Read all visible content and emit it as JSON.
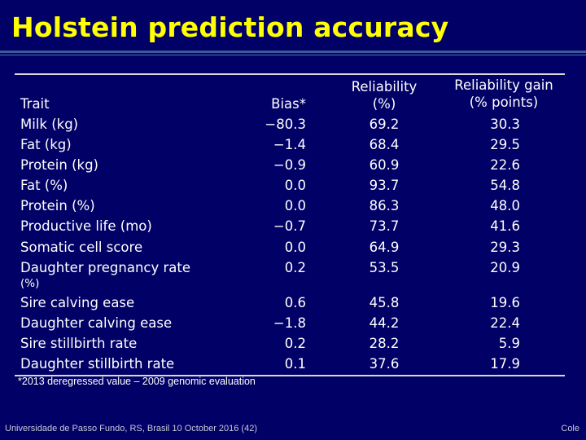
{
  "title": "Holstein prediction accuracy",
  "colors": {
    "background": "#000066",
    "title": "#ffff00",
    "text": "#ffffff",
    "rule": "#d8d8d8"
  },
  "table": {
    "headers": {
      "trait": "Trait",
      "bias": "Bias*",
      "reliability_l1": "Reliability",
      "reliability_l2": "(%)",
      "gain_l1": "Reliability gain",
      "gain_l2": "(% points)"
    },
    "rows": [
      {
        "trait": "Milk (kg)",
        "bias": "−80.3",
        "reliability": "69.2",
        "gain": "30.3"
      },
      {
        "trait": "Fat (kg)",
        "bias": "−1.4",
        "reliability": "68.4",
        "gain": "29.5"
      },
      {
        "trait": "Protein (kg)",
        "bias": "−0.9",
        "reliability": "60.9",
        "gain": "22.6"
      },
      {
        "trait": "Fat (%)",
        "bias": "0.0",
        "reliability": "93.7",
        "gain": "54.8"
      },
      {
        "trait": "Protein (%)",
        "bias": "0.0",
        "reliability": "86.3",
        "gain": "48.0"
      },
      {
        "trait": "Productive life (mo)",
        "bias": "−0.7",
        "reliability": "73.7",
        "gain": "41.6"
      },
      {
        "trait": "Somatic cell score",
        "bias": "0.0",
        "reliability": "64.9",
        "gain": "29.3"
      },
      {
        "trait": "Daughter pregnancy rate",
        "trait_cont": "(%)",
        "bias": "0.2",
        "reliability": "53.5",
        "gain": "20.9"
      },
      {
        "trait": "Sire calving ease",
        "bias": "0.6",
        "reliability": "45.8",
        "gain": "19.6"
      },
      {
        "trait": "Daughter calving ease",
        "bias": "−1.8",
        "reliability": "44.2",
        "gain": "22.4"
      },
      {
        "trait": "Sire stillbirth rate",
        "bias": "0.2",
        "reliability": "28.2",
        "gain": "5.9"
      },
      {
        "trait": "Daughter stillbirth rate",
        "bias": "0.1",
        "reliability": "37.6",
        "gain": "17.9"
      }
    ]
  },
  "footnote": "*2013 deregressed value – 2009 genomic evaluation",
  "footer": {
    "left": "Universidade de Passo Fundo, RS, Brasil 10 October 2016 (42)",
    "right": "Cole"
  }
}
